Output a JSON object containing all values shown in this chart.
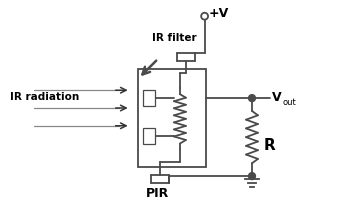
{
  "bg_color": "#ffffff",
  "line_color": "#4a4a4a",
  "text_color": "#000000",
  "figsize": [
    3.5,
    2.15
  ],
  "dpi": 100,
  "labels": {
    "ir_radiation": "IR radiation",
    "ir_filter": "IR filter",
    "pir": "PIR",
    "vout": "V",
    "vout_sub": "out",
    "r_label": "R",
    "vplus": "+V"
  }
}
